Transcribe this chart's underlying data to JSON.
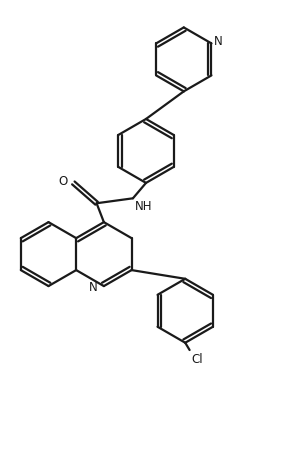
{
  "background_color": "#ffffff",
  "line_color": "#1a1a1a",
  "line_width": 1.6,
  "font_size": 8.5,
  "figsize": [
    2.92,
    4.53
  ],
  "dpi": 100,
  "xlim": [
    0.0,
    10.0
  ],
  "ylim": [
    0.0,
    15.5
  ]
}
